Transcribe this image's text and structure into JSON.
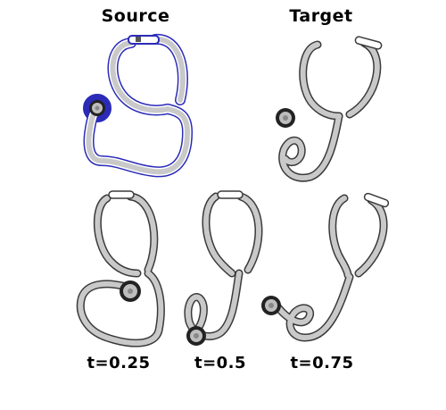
{
  "labels": {
    "source": "Source",
    "target": "Target",
    "t1": "t=0.25",
    "t2": "t=0.5",
    "t3": "t=0.75"
  },
  "colors": {
    "outline": "#2b2bb8",
    "tube_fill": "#c9c9c9",
    "tube_stroke": "#3a3a3a",
    "chest_dark": "#222222",
    "chest_light": "#bdbdbd"
  },
  "icons": {
    "figure": "stethoscope-icon"
  }
}
